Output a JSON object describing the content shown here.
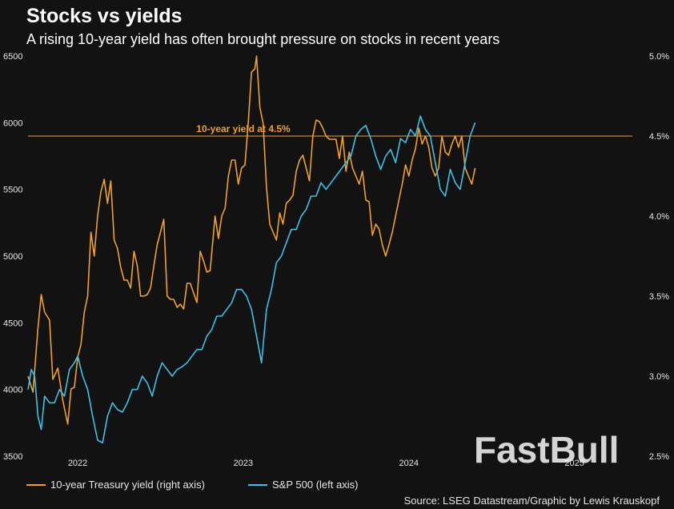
{
  "title": "Stocks vs yields",
  "subtitle": "A rising 10-year yield has often brought pressure on stocks in recent years",
  "source": "Source: LSEG Datastream/Graphic by Lewis Krauskopf",
  "watermark": "FastBull",
  "legend": [
    {
      "label": "10-year Treasury yield (right axis)",
      "color": "#f0a030"
    },
    {
      "label": "S&P 500 (left axis)",
      "color": "#3fc0e8"
    }
  ],
  "chart_data": {
    "type": "line",
    "left_axis": {
      "ticks": [
        3500,
        4000,
        4500,
        5000,
        5500,
        6000,
        6500
      ],
      "range": [
        3500,
        6500
      ]
    },
    "right_axis": {
      "ticks": [
        "2.5%",
        "3.0%",
        "3.5%",
        "4.0%",
        "4.5%",
        "5.0%"
      ],
      "range": [
        2.5,
        5.0
      ]
    },
    "x_ticks": [
      "2022",
      "2023",
      "2024",
      "2025"
    ],
    "x_range": [
      2021.7,
      2025.35
    ],
    "reference_line": {
      "label": "10-year yield at 4.5%",
      "value": 4.5,
      "axis": "right",
      "color": "#f0a030"
    },
    "series": [
      {
        "name": "10-year Treasury yield (right axis)",
        "axis": "right",
        "color": "#f0a030",
        "points": [
          [
            2021.7,
            3.0
          ],
          [
            2021.73,
            2.9
          ],
          [
            2021.76,
            3.3
          ],
          [
            2021.78,
            3.51
          ],
          [
            2021.8,
            3.4
          ],
          [
            2021.83,
            3.35
          ],
          [
            2021.85,
            2.98
          ],
          [
            2021.88,
            3.05
          ],
          [
            2021.91,
            2.85
          ],
          [
            2021.94,
            2.7
          ],
          [
            2021.96,
            2.92
          ],
          [
            2021.98,
            2.93
          ],
          [
            2022.0,
            3.12
          ],
          [
            2022.02,
            3.2
          ],
          [
            2022.04,
            3.4
          ],
          [
            2022.06,
            3.5
          ],
          [
            2022.08,
            3.9
          ],
          [
            2022.1,
            3.75
          ],
          [
            2022.12,
            4.0
          ],
          [
            2022.14,
            4.15
          ],
          [
            2022.16,
            4.23
          ],
          [
            2022.18,
            4.08
          ],
          [
            2022.2,
            4.22
          ],
          [
            2022.22,
            3.85
          ],
          [
            2022.24,
            3.8
          ],
          [
            2022.26,
            3.68
          ],
          [
            2022.28,
            3.6
          ],
          [
            2022.3,
            3.6
          ],
          [
            2022.32,
            3.55
          ],
          [
            2022.34,
            3.78
          ],
          [
            2022.36,
            3.69
          ],
          [
            2022.38,
            3.5
          ],
          [
            2022.4,
            3.5
          ],
          [
            2022.42,
            3.51
          ],
          [
            2022.44,
            3.55
          ],
          [
            2022.46,
            3.69
          ],
          [
            2022.48,
            3.82
          ],
          [
            2022.5,
            3.9
          ],
          [
            2022.52,
            3.98
          ],
          [
            2022.54,
            3.5
          ],
          [
            2022.56,
            3.48
          ],
          [
            2022.58,
            3.48
          ],
          [
            2022.6,
            3.43
          ],
          [
            2022.62,
            3.45
          ],
          [
            2022.64,
            3.42
          ],
          [
            2022.66,
            3.58
          ],
          [
            2022.68,
            3.58
          ],
          [
            2022.7,
            3.52
          ],
          [
            2022.72,
            3.46
          ],
          [
            2022.74,
            3.78
          ],
          [
            2022.76,
            3.72
          ],
          [
            2022.78,
            3.65
          ],
          [
            2022.8,
            3.66
          ],
          [
            2022.83,
            4.0
          ],
          [
            2022.85,
            3.86
          ],
          [
            2022.87,
            4.0
          ],
          [
            2022.89,
            4.05
          ],
          [
            2022.91,
            4.25
          ],
          [
            2022.93,
            4.35
          ],
          [
            2022.95,
            4.35
          ],
          [
            2022.97,
            4.2
          ],
          [
            2022.99,
            4.3
          ],
          [
            2023.01,
            4.32
          ],
          [
            2023.03,
            4.58
          ],
          [
            2023.05,
            4.9
          ],
          [
            2023.07,
            4.92
          ],
          [
            2023.08,
            5.0
          ],
          [
            2023.1,
            4.68
          ],
          [
            2023.12,
            4.58
          ],
          [
            2023.14,
            4.18
          ],
          [
            2023.16,
            3.95
          ],
          [
            2023.18,
            3.9
          ],
          [
            2023.2,
            3.85
          ],
          [
            2023.22,
            4.02
          ],
          [
            2023.24,
            3.95
          ],
          [
            2023.26,
            4.08
          ],
          [
            2023.28,
            4.1
          ],
          [
            2023.3,
            4.13
          ],
          [
            2023.32,
            4.28
          ],
          [
            2023.34,
            4.35
          ],
          [
            2023.36,
            4.38
          ],
          [
            2023.38,
            4.3
          ],
          [
            2023.4,
            4.22
          ],
          [
            2023.42,
            4.5
          ],
          [
            2023.44,
            4.6
          ],
          [
            2023.46,
            4.59
          ],
          [
            2023.48,
            4.55
          ],
          [
            2023.5,
            4.5
          ],
          [
            2023.52,
            4.48
          ],
          [
            2023.54,
            4.48
          ],
          [
            2023.56,
            4.48
          ],
          [
            2023.58,
            4.36
          ],
          [
            2023.6,
            4.5
          ],
          [
            2023.62,
            4.28
          ],
          [
            2023.64,
            4.4
          ],
          [
            2023.66,
            4.3
          ],
          [
            2023.68,
            4.25
          ],
          [
            2023.7,
            4.2
          ],
          [
            2023.72,
            4.28
          ],
          [
            2023.74,
            4.1
          ],
          [
            2023.76,
            4.09
          ],
          [
            2023.78,
            3.88
          ],
          [
            2023.8,
            3.95
          ],
          [
            2023.82,
            3.92
          ],
          [
            2023.84,
            3.82
          ],
          [
            2023.86,
            3.75
          ],
          [
            2023.88,
            3.82
          ],
          [
            2023.9,
            3.9
          ],
          [
            2023.92,
            4.0
          ],
          [
            2023.94,
            4.1
          ],
          [
            2023.96,
            4.2
          ],
          [
            2023.98,
            4.32
          ],
          [
            2024.0,
            4.25
          ],
          [
            2024.02,
            4.35
          ],
          [
            2024.04,
            4.42
          ],
          [
            2024.06,
            4.55
          ],
          [
            2024.08,
            4.45
          ],
          [
            2024.1,
            4.5
          ],
          [
            2024.12,
            4.43
          ],
          [
            2024.14,
            4.3
          ],
          [
            2024.16,
            4.25
          ],
          [
            2024.18,
            4.3
          ],
          [
            2024.2,
            4.5
          ],
          [
            2024.22,
            4.4
          ],
          [
            2024.24,
            4.38
          ],
          [
            2024.26,
            4.45
          ],
          [
            2024.28,
            4.5
          ],
          [
            2024.3,
            4.43
          ],
          [
            2024.32,
            4.5
          ],
          [
            2024.34,
            4.3
          ],
          [
            2024.36,
            4.25
          ],
          [
            2024.38,
            4.2
          ],
          [
            2024.4,
            4.3
          ]
        ]
      },
      {
        "name": "S&P 500 (left axis)",
        "axis": "left",
        "color": "#3fc0e8",
        "points": [
          [
            2021.7,
            4000
          ],
          [
            2021.72,
            4150
          ],
          [
            2021.74,
            4100
          ],
          [
            2021.76,
            3800
          ],
          [
            2021.78,
            3700
          ],
          [
            2021.8,
            3950
          ],
          [
            2021.83,
            3900
          ],
          [
            2021.86,
            3900
          ],
          [
            2021.89,
            4000
          ],
          [
            2021.92,
            3950
          ],
          [
            2021.95,
            4150
          ],
          [
            2021.98,
            4200
          ],
          [
            2022.0,
            4250
          ],
          [
            2022.03,
            4100
          ],
          [
            2022.06,
            4000
          ],
          [
            2022.09,
            3800
          ],
          [
            2022.12,
            3620
          ],
          [
            2022.15,
            3600
          ],
          [
            2022.18,
            3800
          ],
          [
            2022.21,
            3900
          ],
          [
            2022.24,
            3850
          ],
          [
            2022.27,
            3830
          ],
          [
            2022.3,
            3900
          ],
          [
            2022.33,
            4000
          ],
          [
            2022.36,
            4000
          ],
          [
            2022.39,
            4100
          ],
          [
            2022.42,
            4050
          ],
          [
            2022.45,
            3950
          ],
          [
            2022.48,
            4100
          ],
          [
            2022.51,
            4200
          ],
          [
            2022.54,
            4150
          ],
          [
            2022.57,
            4100
          ],
          [
            2022.6,
            4150
          ],
          [
            2022.63,
            4170
          ],
          [
            2022.66,
            4200
          ],
          [
            2022.69,
            4250
          ],
          [
            2022.72,
            4300
          ],
          [
            2022.75,
            4300
          ],
          [
            2022.78,
            4400
          ],
          [
            2022.81,
            4450
          ],
          [
            2022.84,
            4550
          ],
          [
            2022.87,
            4550
          ],
          [
            2022.9,
            4600
          ],
          [
            2022.93,
            4650
          ],
          [
            2022.96,
            4750
          ],
          [
            2022.99,
            4750
          ],
          [
            2023.02,
            4700
          ],
          [
            2023.05,
            4600
          ],
          [
            2023.08,
            4400
          ],
          [
            2023.11,
            4200
          ],
          [
            2023.14,
            4600
          ],
          [
            2023.17,
            4750
          ],
          [
            2023.2,
            4950
          ],
          [
            2023.23,
            5000
          ],
          [
            2023.26,
            5100
          ],
          [
            2023.29,
            5200
          ],
          [
            2023.32,
            5200
          ],
          [
            2023.35,
            5300
          ],
          [
            2023.38,
            5350
          ],
          [
            2023.41,
            5450
          ],
          [
            2023.44,
            5450
          ],
          [
            2023.47,
            5550
          ],
          [
            2023.5,
            5500
          ],
          [
            2023.53,
            5550
          ],
          [
            2023.56,
            5600
          ],
          [
            2023.59,
            5650
          ],
          [
            2023.62,
            5700
          ],
          [
            2023.65,
            5750
          ],
          [
            2023.68,
            5900
          ],
          [
            2023.71,
            5950
          ],
          [
            2023.74,
            5980
          ],
          [
            2023.77,
            5880
          ],
          [
            2023.8,
            5750
          ],
          [
            2023.83,
            5650
          ],
          [
            2023.86,
            5750
          ],
          [
            2023.89,
            5800
          ],
          [
            2023.92,
            5700
          ],
          [
            2023.95,
            5880
          ],
          [
            2023.98,
            5850
          ],
          [
            2024.01,
            5950
          ],
          [
            2024.04,
            5900
          ],
          [
            2024.07,
            6050
          ],
          [
            2024.1,
            5950
          ],
          [
            2024.13,
            5900
          ],
          [
            2024.16,
            5700
          ],
          [
            2024.19,
            5500
          ],
          [
            2024.22,
            5450
          ],
          [
            2024.25,
            5650
          ],
          [
            2024.28,
            5550
          ],
          [
            2024.31,
            5500
          ],
          [
            2024.34,
            5700
          ],
          [
            2024.37,
            5900
          ],
          [
            2024.4,
            6000
          ]
        ]
      }
    ]
  }
}
